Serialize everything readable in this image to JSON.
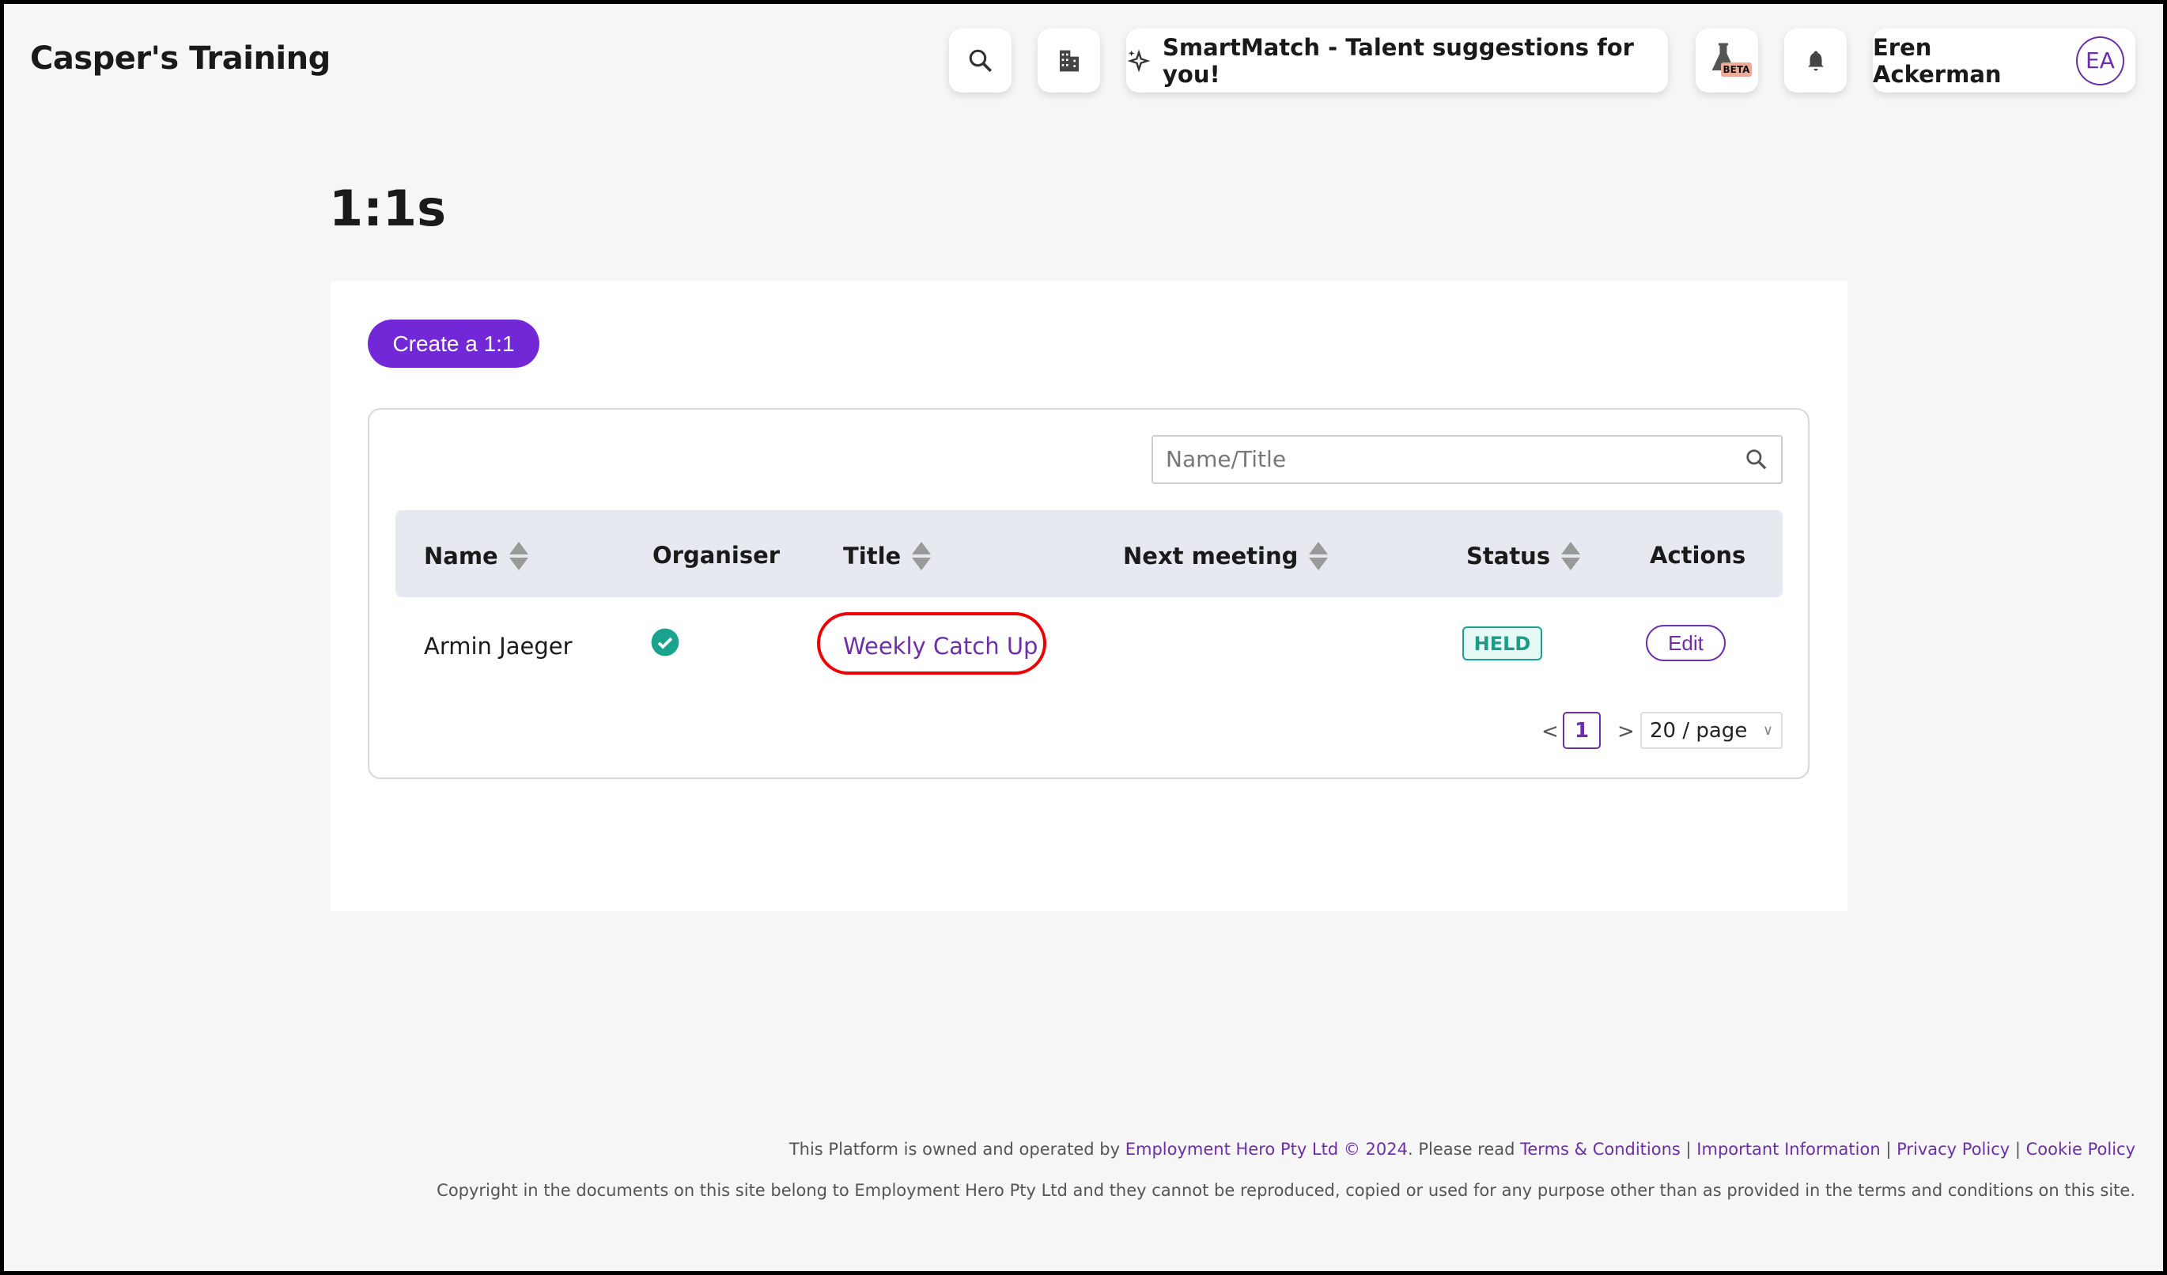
{
  "header": {
    "brand": "Casper's Training",
    "smartmatch_label": "SmartMatch - Talent suggestions for you!",
    "beta_badge": "BETA",
    "user_name": "Eren Ackerman",
    "user_initials": "EA",
    "icons": [
      "search-icon",
      "building-icon",
      "sparkle-icon",
      "flask-icon",
      "bell-icon"
    ]
  },
  "page": {
    "title": "1:1s",
    "create_button": "Create a 1:1"
  },
  "search": {
    "placeholder": "Name/Title"
  },
  "table": {
    "columns": [
      "Name",
      "Organiser",
      "Title",
      "Next meeting",
      "Status",
      "Actions"
    ],
    "rows": [
      {
        "name": "Armin Jaeger",
        "organiser": true,
        "title": "Weekly Catch Up",
        "next_meeting": "",
        "status": "HELD",
        "action": "Edit"
      }
    ]
  },
  "pagination": {
    "prev": "<",
    "current": "1",
    "next": ">",
    "page_size": "20 / page"
  },
  "footer": {
    "l1_a": "This Platform is owned and operated by ",
    "l1_link": "Employment Hero Pty Ltd © 2024",
    "l1_b": ". Please read ",
    "links": [
      "Terms & Conditions",
      "Important Information",
      "Privacy Policy",
      "Cookie Policy"
    ],
    "sep": " | ",
    "copyright": "Copyright in the documents on this site belong to Employment Hero Pty Ltd and they cannot be reproduced, copied or used for any purpose other than as provided in the terms and conditions on this site."
  },
  "colors": {
    "accent": "#7328d8",
    "link": "#6b2fa8",
    "held": "#1a9c86",
    "highlight": "#e00000"
  }
}
